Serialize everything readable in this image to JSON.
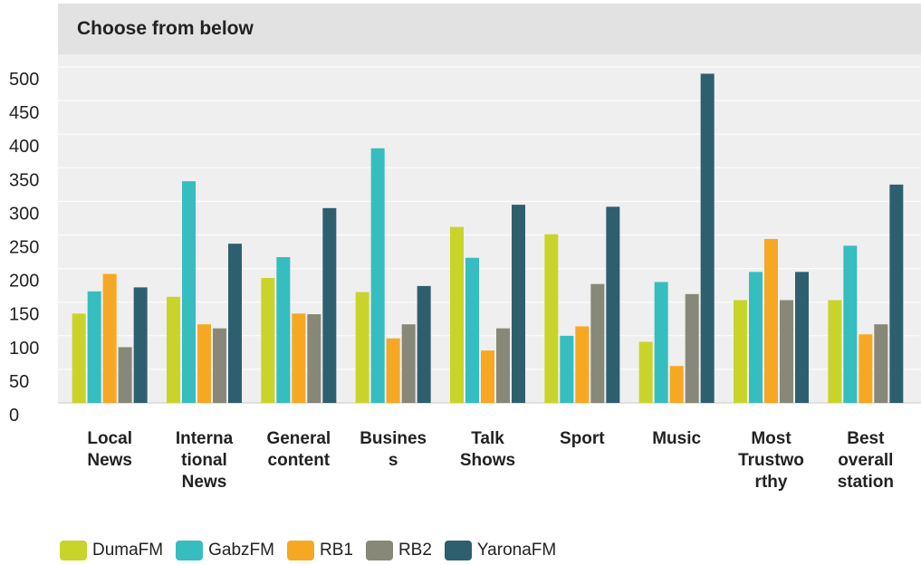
{
  "header": {
    "title": "Choose from below"
  },
  "chart_data": {
    "type": "bar",
    "title": "Choose from below",
    "categories": [
      [
        "Local",
        "News"
      ],
      [
        "Interna",
        "tional",
        "News"
      ],
      [
        "General",
        "content"
      ],
      [
        "Busines",
        "s"
      ],
      [
        "Talk",
        "Shows"
      ],
      [
        "Sport"
      ],
      [
        "Music"
      ],
      [
        "Most",
        "Trustwo",
        "rthy"
      ],
      [
        "Best",
        "overall",
        "station"
      ]
    ],
    "series": [
      {
        "name": "DumaFM",
        "color": "#c9d42a",
        "values": [
          133,
          158,
          186,
          165,
          262,
          251,
          91,
          153,
          153
        ]
      },
      {
        "name": "GabzFM",
        "color": "#36bdbf",
        "values": [
          166,
          330,
          217,
          379,
          216,
          100,
          180,
          195,
          234
        ]
      },
      {
        "name": "RB1",
        "color": "#f6a823",
        "values": [
          192,
          117,
          133,
          96,
          78,
          114,
          55,
          244,
          102
        ]
      },
      {
        "name": "RB2",
        "color": "#878878",
        "values": [
          83,
          111,
          132,
          117,
          111,
          177,
          162,
          153,
          117
        ]
      },
      {
        "name": "YaronaFM",
        "color": "#2e5f6e",
        "values": [
          172,
          237,
          290,
          174,
          295,
          292,
          490,
          195,
          325
        ]
      }
    ],
    "yticks": [
      0,
      50,
      100,
      150,
      200,
      250,
      300,
      350,
      400,
      450,
      500
    ],
    "ylim": [
      0,
      500
    ],
    "grid": true,
    "legend": "bottom",
    "xlabel": "",
    "ylabel": ""
  }
}
